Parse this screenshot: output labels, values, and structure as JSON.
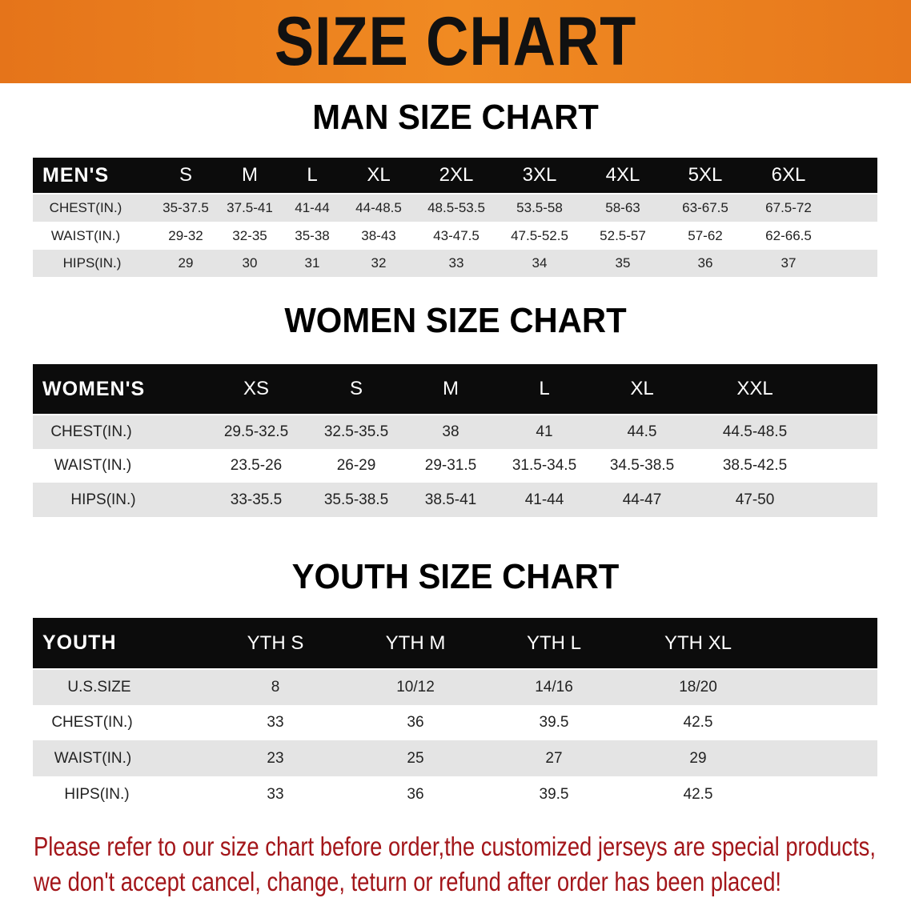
{
  "banner": {
    "title": "SIZE CHART",
    "color": "#ee8420"
  },
  "men": {
    "title": "MAN SIZE CHART",
    "header": [
      "MEN'S",
      "S",
      "M",
      "L",
      "XL",
      "2XL",
      "3XL",
      "4XL",
      "5XL",
      "6XL"
    ],
    "rows": [
      [
        "CHEST(IN.)",
        "35-37.5",
        "37.5-41",
        "41-44",
        "44-48.5",
        "48.5-53.5",
        "53.5-58",
        "58-63",
        "63-67.5",
        "67.5-72"
      ],
      [
        "WAIST(IN.)",
        "29-32",
        "32-35",
        "35-38",
        "38-43",
        "43-47.5",
        "47.5-52.5",
        "52.5-57",
        "57-62",
        "62-66.5"
      ],
      [
        "HIPS(IN.)",
        "29",
        "30",
        "31",
        "32",
        "33",
        "34",
        "35",
        "36",
        "37"
      ]
    ]
  },
  "women": {
    "title": "WOMEN SIZE CHART",
    "header": [
      "WOMEN'S",
      "XS",
      "S",
      "M",
      "L",
      "XL",
      "XXL"
    ],
    "rows": [
      [
        "CHEST(IN.)",
        "29.5-32.5",
        "32.5-35.5",
        "38",
        "41",
        "44.5",
        "44.5-48.5"
      ],
      [
        "WAIST(IN.)",
        "23.5-26",
        "26-29",
        "29-31.5",
        "31.5-34.5",
        "34.5-38.5",
        "38.5-42.5"
      ],
      [
        "HIPS(IN.)",
        "33-35.5",
        "35.5-38.5",
        "38.5-41",
        "41-44",
        "44-47",
        "47-50"
      ]
    ]
  },
  "youth": {
    "title": "YOUTH SIZE CHART",
    "header": [
      "YOUTH",
      "YTH S",
      "YTH M",
      "YTH L",
      "YTH XL"
    ],
    "rows": [
      [
        "U.S.SIZE",
        "8",
        "10/12",
        "14/16",
        "18/20"
      ],
      [
        "CHEST(IN.)",
        "33",
        "36",
        "39.5",
        "42.5"
      ],
      [
        "WAIST(IN.)",
        "23",
        "25",
        "27",
        "29"
      ],
      [
        "HIPS(IN.)",
        "33",
        "36",
        "39.5",
        "42.5"
      ]
    ]
  },
  "note": {
    "line1": "Please refer to our size chart before order,the customized jerseys are special products,",
    "line2": "we don't accept cancel, change, teturn or refund after order has been placed!",
    "color": "#a3161a"
  }
}
